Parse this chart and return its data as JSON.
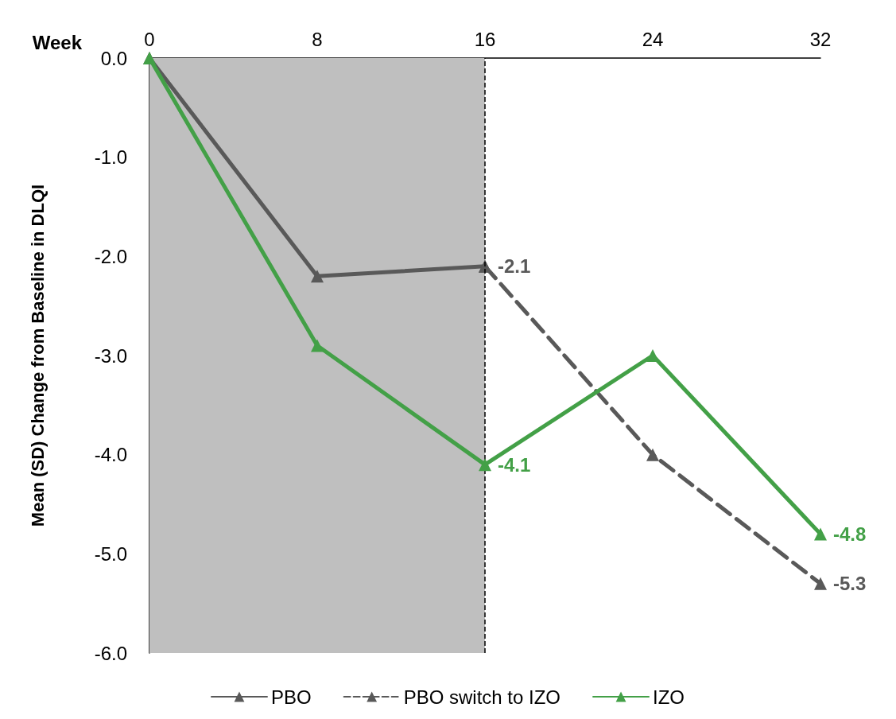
{
  "chart_data": {
    "type": "line",
    "xlabel": "Week",
    "ylabel": "Mean (SD) Change from Baseline in DLQI",
    "xlim": [
      0,
      32
    ],
    "xticks": [
      0,
      8,
      16,
      24,
      32
    ],
    "ylim": [
      -6,
      0
    ],
    "yticks": [
      {
        "value": -6,
        "label": "-6.0"
      },
      {
        "value": -5,
        "label": "-5.0"
      },
      {
        "value": -4,
        "label": "-4.0"
      },
      {
        "value": -3,
        "label": "-3.0"
      },
      {
        "value": -2,
        "label": "-2.0"
      },
      {
        "value": -1,
        "label": "-1.0"
      },
      {
        "value": 0,
        "label": "0.0"
      }
    ],
    "series": [
      {
        "name": "PBO",
        "color": "#595959",
        "x": [
          0,
          8,
          16
        ],
        "values": [
          0,
          -2.2,
          -2.1
        ],
        "value_labels": [
          null,
          null,
          "-2.1"
        ],
        "line_style": "solid"
      },
      {
        "name": "PBO switch to IZO",
        "color": "#595959",
        "x": [
          16,
          24,
          32
        ],
        "values": [
          -2.1,
          -4.0,
          -5.3
        ],
        "value_labels": [
          null,
          null,
          "-5.3"
        ],
        "line_style": "dashed"
      },
      {
        "name": "IZO",
        "color": "#43a047",
        "x": [
          0,
          8,
          16,
          24,
          32
        ],
        "values": [
          0,
          -2.9,
          -4.1,
          -3.0,
          -4.8
        ],
        "value_labels": [
          null,
          null,
          "-4.1",
          null,
          "-4.8"
        ],
        "line_style": "solid"
      }
    ],
    "bands": [
      {
        "axis": "x",
        "from": 0,
        "to": 16,
        "color": "#bfbfbf"
      }
    ],
    "ref_lines": [
      {
        "axis": "x",
        "value": 16,
        "color": "#000000",
        "line_style": "dashed"
      }
    ],
    "marker": "triangle",
    "grid": false,
    "legend": "bottom"
  }
}
